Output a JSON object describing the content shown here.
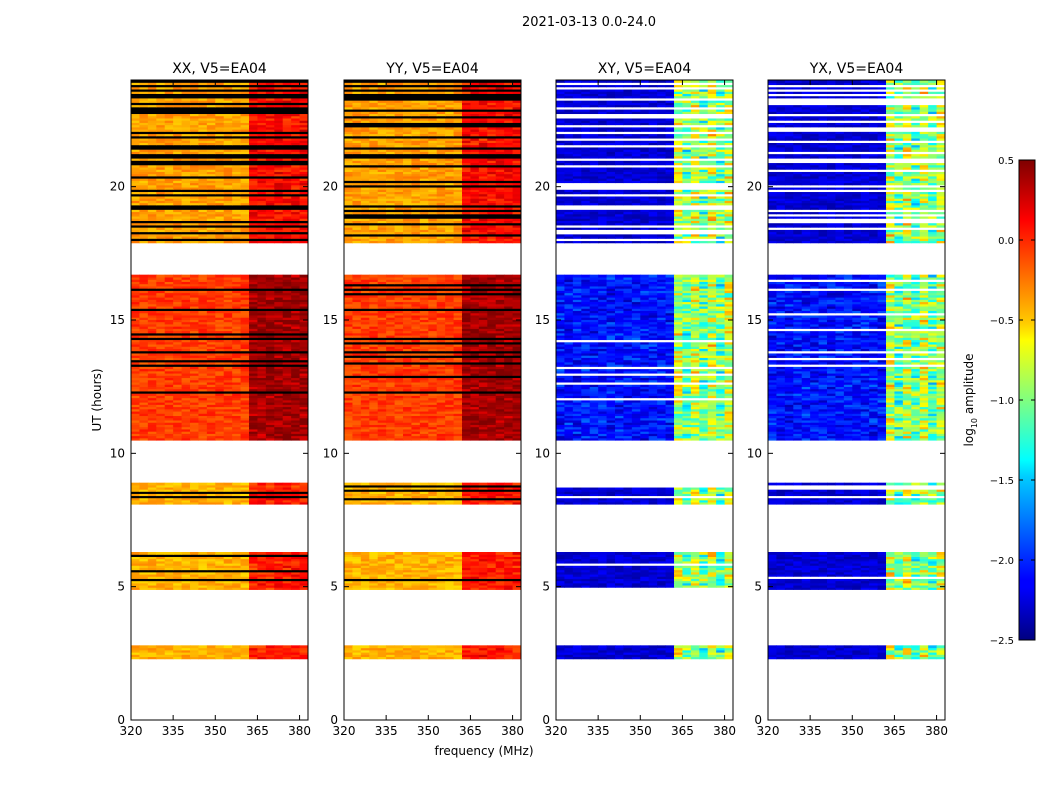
{
  "figure": {
    "suptitle": "2021-03-13 0.0-24.0"
  },
  "chart_data": {
    "type": "heatmap",
    "xlabel": "frequency (MHz)",
    "ylabel": "UT (hours)",
    "xlim": [
      320,
      383
    ],
    "ylim": [
      0,
      24
    ],
    "xticks": [
      320,
      335,
      350,
      365,
      380
    ],
    "yticks": [
      0,
      5,
      10,
      15,
      20
    ],
    "panels": [
      {
        "id": "xx",
        "title": "XX, V5=EA04",
        "polarization": "parallel"
      },
      {
        "id": "yy",
        "title": "YY, V5=EA04",
        "polarization": "parallel"
      },
      {
        "id": "xy",
        "title": "XY, V5=EA04",
        "polarization": "cross"
      },
      {
        "id": "yx",
        "title": "YX, V5=EA04",
        "polarization": "cross"
      }
    ],
    "observation_blocks_ut": [
      {
        "start": 2.3,
        "end": 2.8
      },
      {
        "start": 4.9,
        "end": 6.3
      },
      {
        "start": 8.1,
        "end": 8.9
      },
      {
        "start": 10.5,
        "end": 16.7
      },
      {
        "start": 17.9,
        "end": 24.0
      }
    ],
    "strong_emission_band_mhz": [
      362,
      381
    ],
    "colorbar": {
      "label": "log10 amplitude",
      "label_base": "log",
      "label_sub": "10",
      "label_rest": " amplitude",
      "min": -2.5,
      "max": 0.5,
      "ticks": [
        "0.5",
        "0.0",
        "−0.5",
        "−1.0",
        "−1.5",
        "−2.0",
        "−2.5"
      ],
      "colormap": "jet"
    }
  }
}
